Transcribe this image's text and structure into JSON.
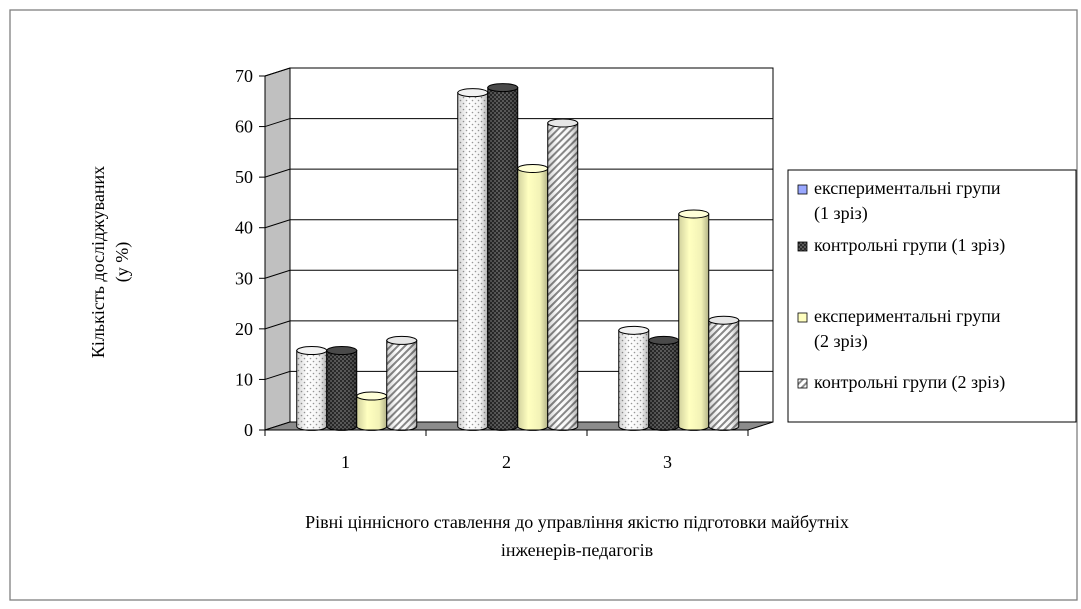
{
  "chart_data": {
    "type": "bar",
    "categories": [
      "1",
      "2",
      "3"
    ],
    "series": [
      {
        "name": "експериментальні  групи (1 зріз)",
        "values": [
          15,
          66,
          19
        ]
      },
      {
        "name": "контрольні групи (1 зріз)",
        "values": [
          15,
          67,
          17
        ]
      },
      {
        "name": "експериментальні  групи (2 зріз)",
        "values": [
          6,
          51,
          42
        ]
      },
      {
        "name": "контрольні групи (2 зріз)",
        "values": [
          17,
          60,
          21
        ]
      }
    ],
    "title": "",
    "xlabel": "Рівні ціннісного ставлення до управління якістю  підготовки майбутніх інженерів-педагогів",
    "ylabel": "Кількість досліджуваних (у %)",
    "ylim": [
      0,
      70
    ],
    "yticks": [
      "0",
      "10",
      "20",
      "30",
      "40",
      "50",
      "60",
      "70"
    ],
    "grid": true,
    "legend_position": "right",
    "three_d": true
  },
  "labels": {
    "ylabel_line1": "Кількість  досліджуваних",
    "ylabel_line2": "(у %)",
    "xlabel_line1": "Рівні  ціннісного  ставлення  до  управління  якістю  підготовки  майбутніх",
    "xlabel_line2": "інженерів-педагогів",
    "legend": [
      {
        "line1": "експериментальні  групи",
        "line2": "(1 зріз)"
      },
      {
        "line1": "контрольні групи (1 зріз)",
        "line2": ""
      },
      {
        "line1": "експериментальні  групи",
        "line2": "(2 зріз)"
      },
      {
        "line1": "контрольні групи (2 зріз)",
        "line2": ""
      }
    ]
  }
}
